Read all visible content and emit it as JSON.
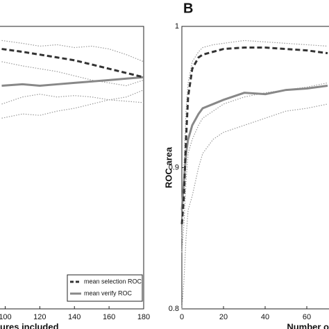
{
  "chart_data": [
    {
      "type": "line",
      "xlabel": "ures included",
      "xlim": [
        97,
        180
      ],
      "xticks": [
        100,
        120,
        140,
        160,
        180
      ],
      "ylim": [
        0.8,
        1
      ],
      "legend": "lower right",
      "x": [
        98,
        110,
        120,
        130,
        140,
        150,
        160,
        170,
        180
      ],
      "series": [
        {
          "name": "mean selection ROC",
          "color": "#333333",
          "style": "dashed",
          "values": [
            0.984,
            0.982,
            0.98,
            0.978,
            0.976,
            0.973,
            0.97,
            0.967,
            0.964
          ]
        },
        {
          "name": "mean verify ROC",
          "color": "#888888",
          "style": "solid",
          "values": [
            0.958,
            0.959,
            0.958,
            0.959,
            0.96,
            0.961,
            0.962,
            0.963,
            0.964
          ]
        },
        {
          "color": "#999999",
          "style": "dotted",
          "values": [
            0.99,
            0.988,
            0.986,
            0.987,
            0.985,
            0.986,
            0.984,
            0.98,
            0.975
          ]
        },
        {
          "color": "#999999",
          "style": "dotted",
          "values": [
            0.975,
            0.972,
            0.97,
            0.968,
            0.965,
            0.962,
            0.96,
            0.958,
            0.962
          ]
        },
        {
          "color": "#999999",
          "style": "dotted",
          "values": [
            0.945,
            0.95,
            0.952,
            0.95,
            0.951,
            0.95,
            0.948,
            0.947,
            0.946
          ]
        },
        {
          "color": "#999999",
          "style": "dotted",
          "values": [
            0.935,
            0.938,
            0.937,
            0.94,
            0.942,
            0.945,
            0.948,
            0.95,
            0.955
          ]
        }
      ]
    },
    {
      "type": "line",
      "panel_label": "B",
      "xlabel": "Number o",
      "ylabel": "ROC area",
      "xlim": [
        0,
        70
      ],
      "xticks": [
        0,
        20,
        40,
        60
      ],
      "ylim": [
        0.8,
        1
      ],
      "yticks": [
        0.8,
        0.9,
        1
      ],
      "x": [
        0,
        1,
        2,
        3,
        5,
        8,
        10,
        15,
        20,
        30,
        40,
        50,
        60,
        70
      ],
      "series": [
        {
          "color": "#333333",
          "style": "dashed",
          "values": [
            0.86,
            0.88,
            0.92,
            0.95,
            0.97,
            0.978,
            0.98,
            0.982,
            0.984,
            0.985,
            0.985,
            0.984,
            0.983,
            0.981
          ]
        },
        {
          "color": "#888888",
          "style": "solid",
          "values": [
            0.87,
            0.89,
            0.91,
            0.92,
            0.93,
            0.938,
            0.942,
            0.945,
            0.948,
            0.953,
            0.952,
            0.955,
            0.956,
            0.958
          ]
        },
        {
          "color": "#999999",
          "style": "dotted",
          "values": [
            0.85,
            0.9,
            0.94,
            0.96,
            0.975,
            0.982,
            0.985,
            0.987,
            0.988,
            0.99,
            0.989,
            0.988,
            0.987,
            0.986
          ]
        },
        {
          "color": "#999999",
          "style": "dotted",
          "values": [
            0.84,
            0.86,
            0.89,
            0.91,
            0.92,
            0.93,
            0.935,
            0.94,
            0.945,
            0.95,
            0.953,
            0.955,
            0.957,
            0.96
          ]
        },
        {
          "color": "#999999",
          "style": "dotted",
          "values": [
            0.8,
            0.82,
            0.85,
            0.87,
            0.88,
            0.9,
            0.91,
            0.92,
            0.925,
            0.93,
            0.935,
            0.94,
            0.942,
            0.945
          ]
        }
      ]
    }
  ]
}
